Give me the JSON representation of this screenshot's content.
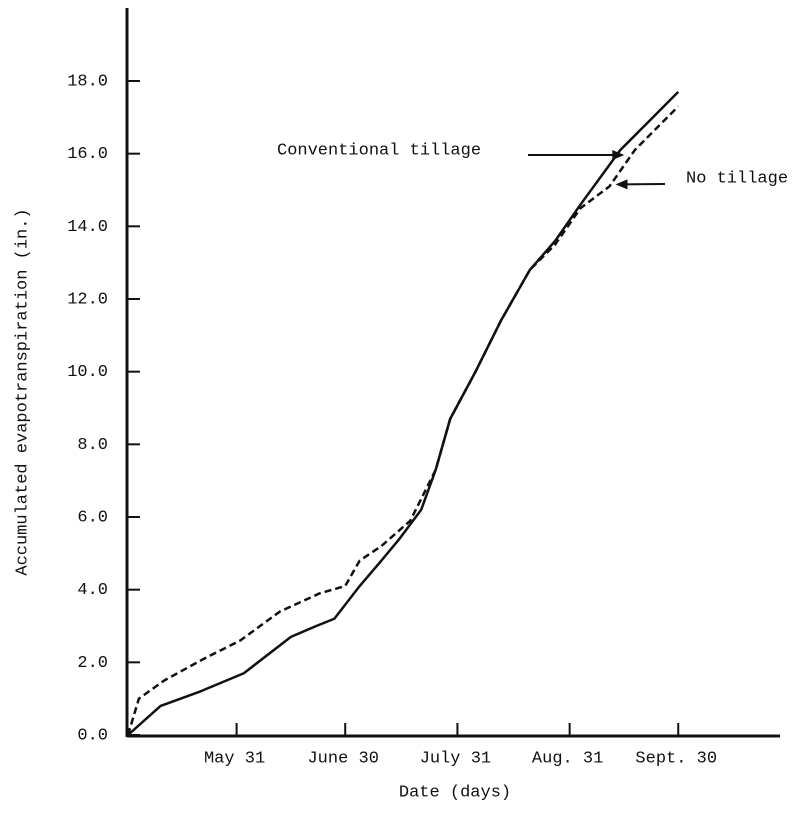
{
  "chart_data": {
    "type": "line",
    "x_label": "Date (days)",
    "y_label": "Accumulated evapotranspiration (in.)",
    "xlim": [
      121,
      301
    ],
    "xticks": [
      {
        "value": 151,
        "label": "May 31"
      },
      {
        "value": 181,
        "label": "June 30"
      },
      {
        "value": 212,
        "label": "July 31"
      },
      {
        "value": 243,
        "label": "Aug. 31"
      },
      {
        "value": 273,
        "label": "Sept. 30"
      }
    ],
    "ylim": [
      0,
      18
    ],
    "yticks": [
      {
        "value": 0,
        "label": "0.0"
      },
      {
        "value": 2,
        "label": "2.0"
      },
      {
        "value": 4,
        "label": "4.0"
      },
      {
        "value": 6,
        "label": "6.0"
      },
      {
        "value": 8,
        "label": "8.0"
      },
      {
        "value": 10,
        "label": "10.0"
      },
      {
        "value": 12,
        "label": "12.0"
      },
      {
        "value": 14,
        "label": "14.0"
      },
      {
        "value": 16,
        "label": "16.0"
      },
      {
        "value": 18,
        "label": "18.0"
      }
    ],
    "grid": false,
    "series": [
      {
        "name": "Conventional tillage",
        "color": "#111111",
        "dash": false,
        "x": [
          121,
          130,
          141,
          153,
          166,
          173,
          178,
          185,
          191,
          196,
          202,
          206,
          210,
          217,
          224,
          232,
          239,
          246,
          257,
          265,
          273
        ],
        "values": [
          0,
          0.8,
          1.2,
          1.7,
          2.7,
          3.0,
          3.2,
          4.1,
          4.8,
          5.4,
          6.2,
          7.3,
          8.7,
          10.0,
          11.4,
          12.8,
          13.6,
          14.6,
          16.1,
          16.9,
          17.7
        ]
      },
      {
        "name": "No tillage",
        "color": "#111111",
        "dash": true,
        "x": [
          121,
          124,
          131,
          142,
          152,
          163,
          174,
          181,
          185,
          191,
          199,
          206,
          210,
          217,
          224,
          232,
          239,
          246,
          254,
          261,
          273
        ],
        "values": [
          0,
          1.0,
          1.5,
          2.1,
          2.6,
          3.4,
          3.9,
          4.1,
          4.8,
          5.2,
          5.9,
          7.3,
          8.7,
          10.0,
          11.4,
          12.8,
          13.5,
          14.5,
          15.1,
          16.1,
          17.3
        ]
      }
    ]
  }
}
